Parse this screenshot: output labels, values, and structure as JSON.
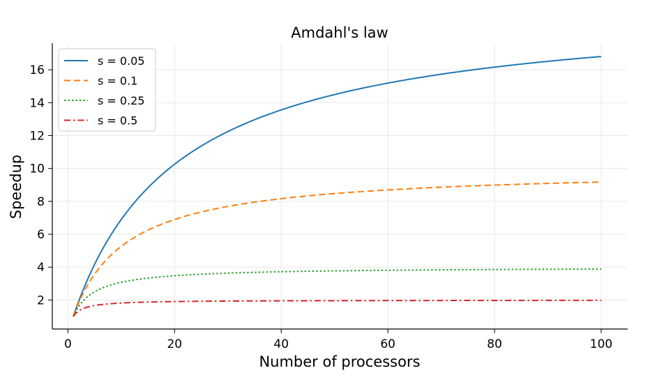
{
  "chart_data": {
    "type": "line",
    "title": "Amdahl's law",
    "xlabel": "Number of processors",
    "ylabel": "Speedup",
    "xlim": [
      1,
      100
    ],
    "ylim": [
      1,
      17.5
    ],
    "xticks": [
      0,
      20,
      40,
      60,
      80,
      100
    ],
    "yticks": [
      2,
      4,
      6,
      8,
      10,
      12,
      14,
      16
    ],
    "grid": true,
    "legend_position": "top-left",
    "x_start": 1,
    "x_end": 100,
    "series": [
      {
        "name": "s = 0.05",
        "s": 0.05,
        "color": "#1f77b4",
        "linestyle": "solid",
        "x": [
          1,
          5,
          10,
          20,
          30,
          40,
          50,
          60,
          70,
          80,
          90,
          100
        ],
        "values": [
          1.0,
          4.17,
          6.9,
          10.26,
          12.24,
          13.56,
          14.49,
          15.19,
          15.73,
          16.16,
          16.51,
          16.81
        ]
      },
      {
        "name": "s = 0.1",
        "s": 0.1,
        "color": "#ff7f0e",
        "linestyle": "dashed",
        "x": [
          1,
          5,
          10,
          20,
          30,
          40,
          50,
          60,
          70,
          80,
          90,
          100
        ],
        "values": [
          1.0,
          3.57,
          5.26,
          6.9,
          7.69,
          8.16,
          8.47,
          8.7,
          8.86,
          8.99,
          9.09,
          9.17
        ]
      },
      {
        "name": "s = 0.25",
        "s": 0.25,
        "color": "#2ca02c",
        "linestyle": "dotted",
        "x": [
          1,
          5,
          10,
          20,
          30,
          40,
          50,
          60,
          70,
          80,
          90,
          100
        ],
        "values": [
          1.0,
          2.5,
          3.08,
          3.48,
          3.64,
          3.72,
          3.77,
          3.81,
          3.83,
          3.85,
          3.87,
          3.88
        ]
      },
      {
        "name": "s = 0.5",
        "s": 0.5,
        "color": "#d62728",
        "linestyle": "dashdot",
        "x": [
          1,
          5,
          10,
          20,
          30,
          40,
          50,
          60,
          70,
          80,
          90,
          100
        ],
        "values": [
          1.0,
          1.67,
          1.82,
          1.9,
          1.94,
          1.95,
          1.96,
          1.97,
          1.97,
          1.98,
          1.98,
          1.98
        ]
      }
    ]
  }
}
